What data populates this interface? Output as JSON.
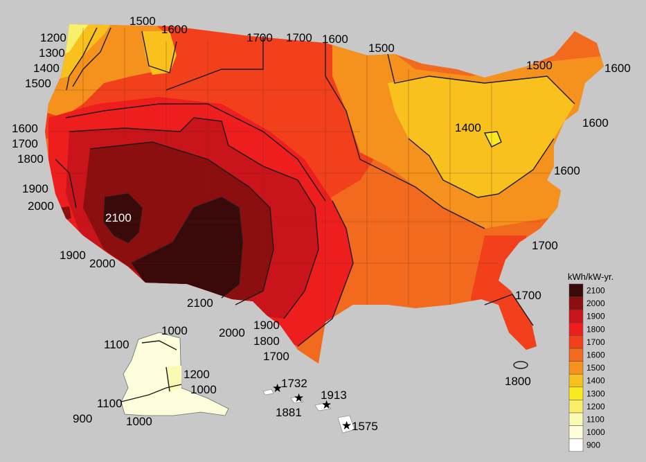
{
  "legend": {
    "title": "kWh/kW-yr.",
    "items": [
      {
        "value": "2100",
        "color": "#3a0a0a"
      },
      {
        "value": "2000",
        "color": "#8b0f0f"
      },
      {
        "value": "1900",
        "color": "#c8141a"
      },
      {
        "value": "1800",
        "color": "#ee1e1e"
      },
      {
        "value": "1700",
        "color": "#f2401c"
      },
      {
        "value": "1600",
        "color": "#f26a1e"
      },
      {
        "value": "1500",
        "color": "#f5921e"
      },
      {
        "value": "1400",
        "color": "#f8c11e"
      },
      {
        "value": "1300",
        "color": "#f8ea1e"
      },
      {
        "value": "1200",
        "color": "#f8f06a"
      },
      {
        "value": "1100",
        "color": "#fafab4"
      },
      {
        "value": "1000",
        "color": "#fdfddc"
      },
      {
        "value": "900",
        "color": "#ffffff"
      }
    ]
  },
  "contour_labels": {
    "l1200": "1200",
    "l1300": "1300",
    "l1400": "1400",
    "l1500w": "1500",
    "l1500n": "1500",
    "l1600n": "1600",
    "l1700n1": "1700",
    "l1700n2": "1700",
    "l1600n2": "1600",
    "l1500ne": "1500",
    "l1500e": "1500",
    "l1600e1": "1600",
    "l1600e2": "1600",
    "l1400e": "1400",
    "l1600e3": "1600",
    "l1600w": "1600",
    "l1700w": "1700",
    "l1800w": "1800",
    "l1900w": "1900",
    "l2000w": "2000",
    "l2100": "2100",
    "l1900s": "1900",
    "l2000s": "2000",
    "l2100s": "2100",
    "l2000s2": "2000",
    "l1900tx": "1900",
    "l1800tx": "1800",
    "l1700tx": "1700",
    "l1700se": "1700",
    "l1700fl": "1700",
    "l1800fl": "1800"
  },
  "alaska_labels": {
    "a1000n": "1000",
    "a1100": "1100",
    "a1200": "1200",
    "a1000e": "1000",
    "a1100s": "1100",
    "a900": "900",
    "a1000s": "1000"
  },
  "hawaii_labels": {
    "h1732": "1732",
    "h1913": "1913",
    "h1881": "1881",
    "h1575": "1575"
  }
}
